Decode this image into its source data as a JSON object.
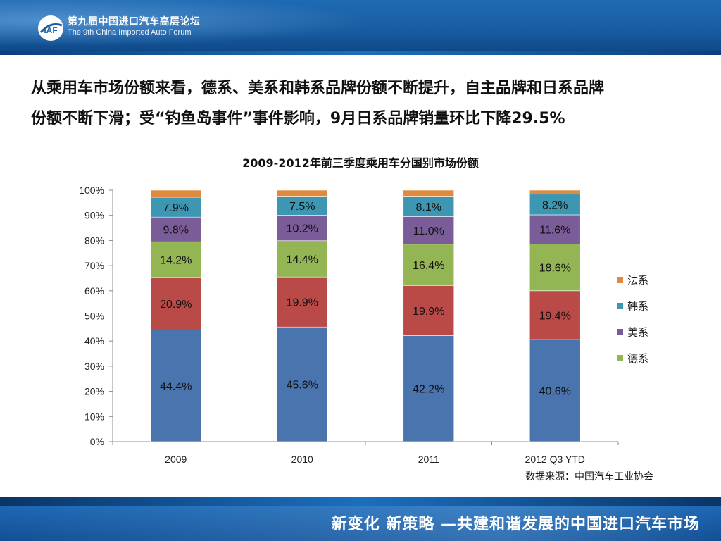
{
  "header": {
    "title_cn": "第九届中国进口汽车高层论坛",
    "title_en": "The 9th China Imported Auto Forum",
    "logo_text": "IAF"
  },
  "headline": {
    "line1": "从乘用车市场份额来看，德系、美系和韩系品牌份额不断提升，自主品牌和日系品牌",
    "line2": "份额不断下滑；受“钓鱼岛事件”事件影响，9月日系品牌销量环比下降29.5%"
  },
  "chart_data": {
    "type": "bar",
    "stacked": true,
    "title": "2009-2012年前三季度乘用车分国别市场份额",
    "categories": [
      "2009",
      "2010",
      "2011",
      "2012 Q3  YTD"
    ],
    "series": [
      {
        "name": "",
        "color": "#4a74ad",
        "values": [
          44.4,
          45.6,
          42.2,
          40.6
        ],
        "labels": [
          "44.4%",
          "45.6%",
          "42.2%",
          "40.6%"
        ]
      },
      {
        "name": "",
        "color": "#b94a47",
        "values": [
          20.9,
          19.9,
          19.9,
          19.4
        ],
        "labels": [
          "20.9%",
          "19.9%",
          "19.9%",
          "19.4%"
        ]
      },
      {
        "name": "德系",
        "color": "#94b554",
        "values": [
          14.2,
          14.4,
          16.4,
          18.6
        ],
        "labels": [
          "14.2%",
          "14.4%",
          "16.4%",
          "18.6%"
        ]
      },
      {
        "name": "美系",
        "color": "#7a5c98",
        "values": [
          9.8,
          10.2,
          11.0,
          11.6
        ],
        "labels": [
          "9.8%",
          "10.2%",
          "11.0%",
          "11.6%"
        ]
      },
      {
        "name": "韩系",
        "color": "#3e97b2",
        "values": [
          7.9,
          7.5,
          8.1,
          8.2
        ],
        "labels": [
          "7.9%",
          "7.5%",
          "8.1%",
          "8.2%"
        ]
      },
      {
        "name": "法系",
        "color": "#e08a3f",
        "values": [
          2.8,
          2.4,
          2.4,
          1.6
        ],
        "labels": [
          "",
          "",
          "",
          ""
        ]
      }
    ],
    "ylim": [
      0,
      100
    ],
    "yticks": [
      "0%",
      "10%",
      "20%",
      "30%",
      "40%",
      "50%",
      "60%",
      "70%",
      "80%",
      "90%",
      "100%"
    ],
    "legend_placement": "right",
    "grid": false
  },
  "source_note": "数据来源：中国汽车工业协会",
  "footer": {
    "slogan": "新变化  新策略 —共建和谐发展的中国进口汽车市场"
  }
}
